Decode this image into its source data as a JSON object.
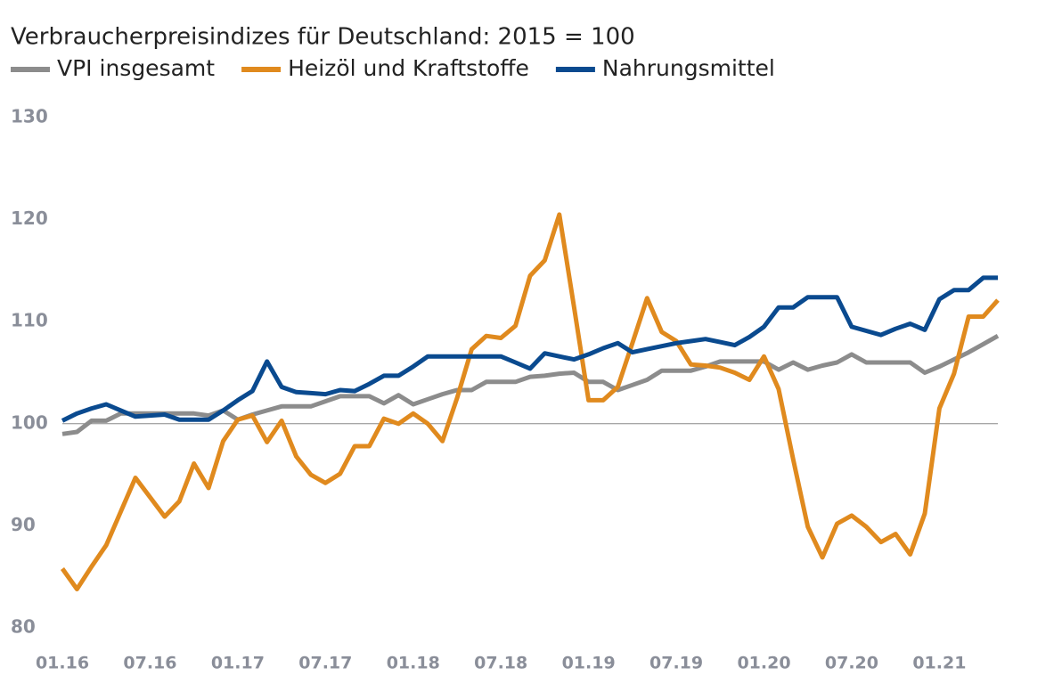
{
  "chart_data": {
    "type": "line",
    "title": "Verbraucherpreisindizes für Deutschland: 2015 = 100",
    "categories": [
      "01.16",
      null,
      null,
      null,
      null,
      null,
      "07.16",
      null,
      null,
      null,
      null,
      null,
      "01.17",
      null,
      null,
      null,
      null,
      null,
      "07.17",
      null,
      null,
      null,
      null,
      null,
      "01.18",
      null,
      null,
      null,
      null,
      null,
      "07.18",
      null,
      null,
      null,
      null,
      null,
      "01.19",
      null,
      null,
      null,
      null,
      null,
      "07.19",
      null,
      null,
      null,
      null,
      null,
      "01.20",
      null,
      null,
      null,
      null,
      null,
      "07.20",
      null,
      null,
      null,
      null,
      null,
      "01.21",
      null,
      null,
      null,
      null
    ],
    "series": [
      {
        "name": "VPI insgesamt",
        "color": "#8c8c8c",
        "values": [
          99.0,
          99.2,
          100.3,
          100.3,
          101.0,
          101.0,
          101.0,
          101.0,
          101.0,
          101.0,
          100.8,
          101.3,
          100.4,
          100.9,
          101.3,
          101.7,
          101.7,
          101.7,
          102.2,
          102.7,
          102.7,
          102.7,
          102.0,
          102.8,
          101.9,
          102.4,
          102.9,
          103.3,
          103.3,
          104.1,
          104.1,
          104.1,
          104.6,
          104.7,
          104.9,
          105.0,
          104.1,
          104.1,
          103.3,
          103.8,
          104.3,
          105.2,
          105.2,
          105.2,
          105.6,
          106.1,
          106.1,
          106.1,
          106.1,
          105.3,
          106.0,
          105.3,
          105.7,
          106.0,
          106.8,
          106.0,
          106.0,
          106.0,
          106.0,
          105.0,
          105.6,
          106.3,
          107.0,
          107.8,
          108.6
        ]
      },
      {
        "name": "Heizöl und Kraftstoffe",
        "color": "#e08a1e",
        "values": [
          85.8,
          83.8,
          86.0,
          88.1,
          91.4,
          94.7,
          92.8,
          90.9,
          92.4,
          96.1,
          93.7,
          98.3,
          100.4,
          100.8,
          98.2,
          100.3,
          96.8,
          95.0,
          94.2,
          95.1,
          97.8,
          97.8,
          100.5,
          100.0,
          101.0,
          100.0,
          98.3,
          102.5,
          107.3,
          108.6,
          108.4,
          109.6,
          114.5,
          116.0,
          120.5,
          111.5,
          102.3,
          102.3,
          103.6,
          107.9,
          112.3,
          109.0,
          108.1,
          105.8,
          105.7,
          105.5,
          105.0,
          104.3,
          106.6,
          103.4,
          96.5,
          89.9,
          86.9,
          90.2,
          91.0,
          89.9,
          88.4,
          89.2,
          87.2,
          91.2,
          101.5,
          104.9,
          110.5,
          110.5,
          112.1
        ]
      },
      {
        "name": "Nahrungsmittel",
        "color": "#0a4a8f",
        "values": [
          100.3,
          101.0,
          101.5,
          101.9,
          101.3,
          100.7,
          100.8,
          100.9,
          100.4,
          100.4,
          100.4,
          101.3,
          102.3,
          103.2,
          106.1,
          103.6,
          103.1,
          103.0,
          102.9,
          103.3,
          103.2,
          103.9,
          104.7,
          104.7,
          105.6,
          106.6,
          106.6,
          106.6,
          106.6,
          106.6,
          106.6,
          106.0,
          105.4,
          106.9,
          106.6,
          106.3,
          106.8,
          107.4,
          107.9,
          107.0,
          107.3,
          107.6,
          107.9,
          108.1,
          108.3,
          108.0,
          107.7,
          108.5,
          109.5,
          111.4,
          111.4,
          112.4,
          112.4,
          112.4,
          109.5,
          109.1,
          108.7,
          109.3,
          109.8,
          109.2,
          112.2,
          113.1,
          113.1,
          114.3,
          114.3
        ]
      }
    ],
    "ylim": [
      80,
      130
    ],
    "yticks": [
      80,
      90,
      100,
      110,
      120,
      130
    ],
    "reference_line": 100
  }
}
